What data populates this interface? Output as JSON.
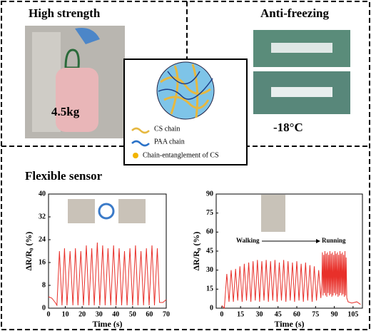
{
  "panels": {
    "high_strength": {
      "title": "High strength",
      "weight": "4.5kg"
    },
    "anti_freezing": {
      "title": "Anti-freezing",
      "temperature": "-18°C"
    },
    "network": {
      "legend": [
        "CS chain",
        "PAA chain",
        "Chain-entanglement of CS"
      ]
    },
    "sensor": {
      "title": "Flexible sensor"
    }
  },
  "chart_data": [
    {
      "type": "line",
      "xlabel": "Time (s)",
      "ylabel": "ΔR/R₀ (%)",
      "color": "#e8302a",
      "xlim": [
        0,
        70
      ],
      "xticks": [
        0,
        10,
        20,
        30,
        40,
        50,
        60,
        70
      ],
      "ylim": [
        0,
        40
      ],
      "yticks": [
        0,
        8,
        16,
        24,
        32,
        40
      ],
      "x": [
        0,
        2,
        4,
        5,
        6.5,
        8,
        9.5,
        11,
        12.8,
        14.5,
        16,
        17.5,
        19.2,
        20.8,
        22.5,
        24,
        25.7,
        27.2,
        29,
        30.5,
        32.2,
        33.7,
        35.4,
        37,
        38.7,
        40.2,
        42,
        43.5,
        45.2,
        46.7,
        48.4,
        50,
        51.7,
        53.2,
        55,
        56.5,
        58.2,
        59.8,
        61.5,
        63,
        64.7,
        66,
        68,
        70
      ],
      "values": [
        4,
        3.5,
        2,
        1,
        20,
        1,
        21,
        1,
        20,
        1,
        21,
        1,
        20,
        1,
        22,
        1,
        21,
        1,
        23,
        1,
        22,
        1,
        21,
        1,
        22,
        1,
        21,
        1,
        20,
        1,
        21,
        1,
        22,
        1,
        20,
        1,
        21,
        1,
        22,
        1,
        21,
        2,
        2,
        3
      ]
    },
    {
      "type": "line",
      "xlabel": "Time (s)",
      "ylabel": "ΔR/R₀ (%)",
      "color": "#e8302a",
      "xlim": [
        -4.5,
        112.5
      ],
      "xticks": [
        0,
        15,
        30,
        45,
        60,
        75,
        90,
        105
      ],
      "ylim": [
        0,
        90
      ],
      "yticks": [
        0,
        15,
        30,
        45,
        60,
        75,
        90
      ],
      "annotations": [
        "Walking",
        "Running"
      ],
      "x": [
        0,
        2,
        4,
        5.75,
        7.5,
        9.25,
        11,
        12.75,
        14.5,
        16.25,
        18,
        19.75,
        21.5,
        23.25,
        25,
        26.75,
        28.5,
        30.25,
        32,
        33.75,
        35.5,
        37.25,
        39,
        40.75,
        42.5,
        44.25,
        46,
        47.75,
        49.5,
        51.25,
        53,
        54.75,
        56.5,
        58.25,
        60,
        61.75,
        63.5,
        65.25,
        67,
        68.75,
        70.5,
        72.25,
        74,
        75.75,
        77.5,
        79.25,
        80,
        80.5,
        81,
        81.5,
        82,
        82.5,
        83,
        83.5,
        84,
        84.5,
        85,
        85.5,
        86,
        86.5,
        87,
        87.5,
        88,
        88.5,
        89,
        89.5,
        90,
        90.5,
        91,
        91.5,
        92,
        92.5,
        93,
        93.5,
        94,
        94.5,
        95,
        95.5,
        96,
        96.5,
        97,
        97.5,
        98,
        98.5,
        99,
        99.5,
        100,
        101,
        104,
        108,
        111
      ],
      "values": [
        2,
        0,
        27,
        5,
        30,
        5,
        31,
        6,
        33,
        5,
        35,
        6,
        36,
        5,
        37,
        6,
        38,
        5,
        37,
        6,
        38,
        5,
        37,
        6,
        38,
        5,
        36,
        6,
        38,
        5,
        37,
        6,
        36,
        5,
        37,
        6,
        35,
        5,
        36,
        6,
        34,
        5,
        33,
        6,
        30,
        8,
        20,
        44,
        10,
        42,
        12,
        45,
        10,
        43,
        9,
        44,
        12,
        42,
        10,
        45,
        11,
        43,
        9,
        44,
        10,
        42,
        12,
        45,
        10,
        43,
        11,
        44,
        9,
        42,
        10,
        45,
        12,
        43,
        10,
        44,
        11,
        42,
        9,
        45,
        10,
        40,
        8,
        5,
        4,
        5,
        3
      ]
    }
  ]
}
